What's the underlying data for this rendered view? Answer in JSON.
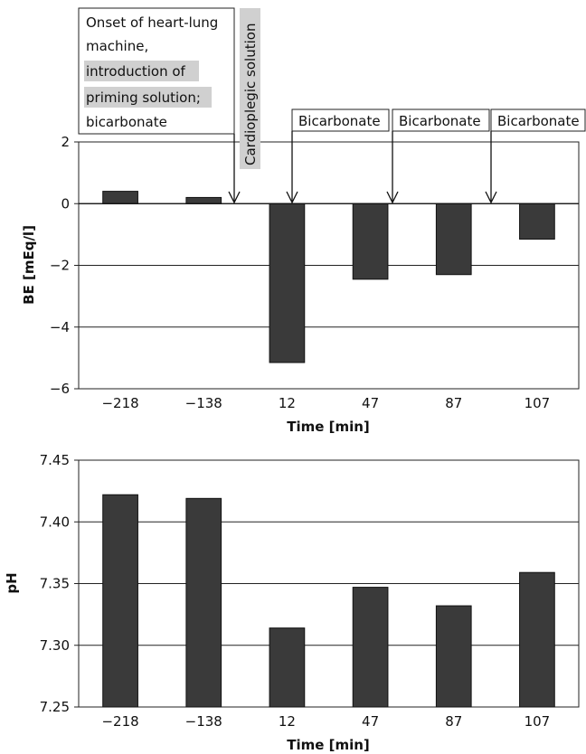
{
  "chart_data": [
    {
      "type": "bar",
      "categories": [
        "−218",
        "−138",
        "12",
        "47",
        "87",
        "107"
      ],
      "values": [
        0.4,
        0.2,
        -5.15,
        -2.45,
        -2.3,
        -1.15
      ],
      "ylabel": "BE [mEq/l]",
      "xlabel": "Time [min]",
      "ylim": [
        -6,
        2
      ],
      "yticks": [
        "2",
        "0",
        "−2",
        "−4",
        "−6"
      ],
      "grid": true,
      "bar_color": "#3a3a3a",
      "annotations": {
        "onset_lines": [
          "Onset of heart-lung",
          "machine,",
          "introduction of",
          "priming solution;",
          "bicarbonate"
        ],
        "cardioplegic": "Cardioplegic solution",
        "bicarbonate": [
          "Bicarbonate",
          "Bicarbonate",
          "Bicarbonate"
        ]
      }
    },
    {
      "type": "bar",
      "categories": [
        "−218",
        "−138",
        "12",
        "47",
        "87",
        "107"
      ],
      "values": [
        7.422,
        7.419,
        7.314,
        7.347,
        7.332,
        7.359
      ],
      "ylabel": "pH",
      "xlabel": "Time [min]",
      "ylim": [
        7.25,
        7.45
      ],
      "yticks": [
        "7.45",
        "7.40",
        "7.35",
        "7.30",
        "7.25"
      ],
      "grid": true,
      "bar_color": "#3a3a3a"
    }
  ]
}
